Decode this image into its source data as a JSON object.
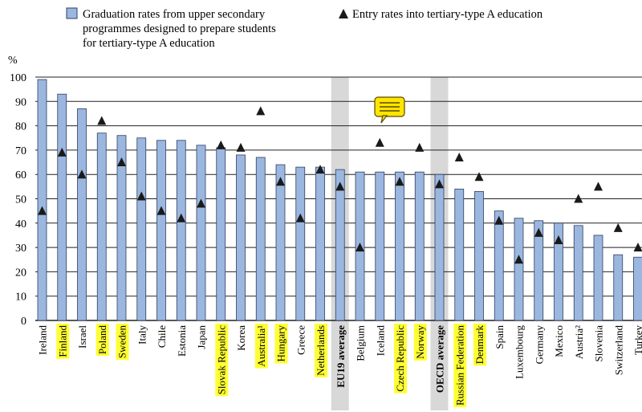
{
  "chart_data": {
    "type": "bar",
    "ylabel": "%",
    "ylim": [
      0,
      100
    ],
    "yticks": [
      0,
      10,
      20,
      30,
      40,
      50,
      60,
      70,
      80,
      90,
      100
    ],
    "grid": true,
    "legend_placement": "top",
    "categories": [
      "Ireland",
      "Finland",
      "Israel",
      "Poland",
      "Sweden",
      "Italy",
      "Chile",
      "Estonia",
      "Japan",
      "Slovak Republic",
      "Korea",
      "Australia¹",
      "Hungary",
      "Greece",
      "Netherlands",
      "EU19 average",
      "Belgium",
      "Iceland",
      "Czech Republic",
      "Norway",
      "OECD average",
      "Russian Federation",
      "Denmark",
      "Spain",
      "Luxembourg",
      "Germany",
      "Mexico",
      "Austria²",
      "Slovenia",
      "Switzerland",
      "Turkey"
    ],
    "highlighted_categories": [
      "Finland",
      "Poland",
      "Sweden",
      "Slovak Republic",
      "Australia¹",
      "Hungary",
      "Netherlands",
      "Czech Republic",
      "Norway",
      "Russian Federation",
      "Denmark"
    ],
    "average_categories": [
      "EU19 average",
      "OECD average"
    ],
    "series": [
      {
        "name": "Graduation rates from upper secondary programmes designed to prepare students for tertiary-type A education",
        "kind": "bar",
        "color": "#9bb7e0",
        "values": [
          99,
          93,
          87,
          77,
          76,
          75,
          74,
          74,
          72,
          71,
          68,
          67,
          64,
          63,
          63,
          62,
          61,
          61,
          61,
          61,
          60,
          54,
          53,
          45,
          42,
          41,
          40,
          39,
          35,
          27,
          26
        ]
      },
      {
        "name": "Entry rates into tertiary-type A education",
        "kind": "marker",
        "color": "#1a1a1a",
        "values": [
          45,
          69,
          60,
          82,
          65,
          51,
          45,
          42,
          48,
          72,
          71,
          86,
          57,
          42,
          62,
          55,
          30,
          73,
          57,
          71,
          56,
          67,
          59,
          41,
          25,
          36,
          33,
          50,
          55,
          38,
          30
        ]
      }
    ]
  },
  "legend": {
    "bar_label_lines": [
      "Graduation rates from upper secondary",
      "programmes designed to prepare students",
      "for tertiary-type A education"
    ],
    "marker_label": "Entry rates into tertiary-type A education"
  },
  "colors": {
    "bar": "#9bb7e0",
    "bar_stroke": "#2f3f5f",
    "highlight": "#ffff33",
    "average_band": "#d8d8d8",
    "grid": "#222222",
    "comment_icon": "#ffe600"
  },
  "icons": {
    "comment": "comment-icon"
  }
}
